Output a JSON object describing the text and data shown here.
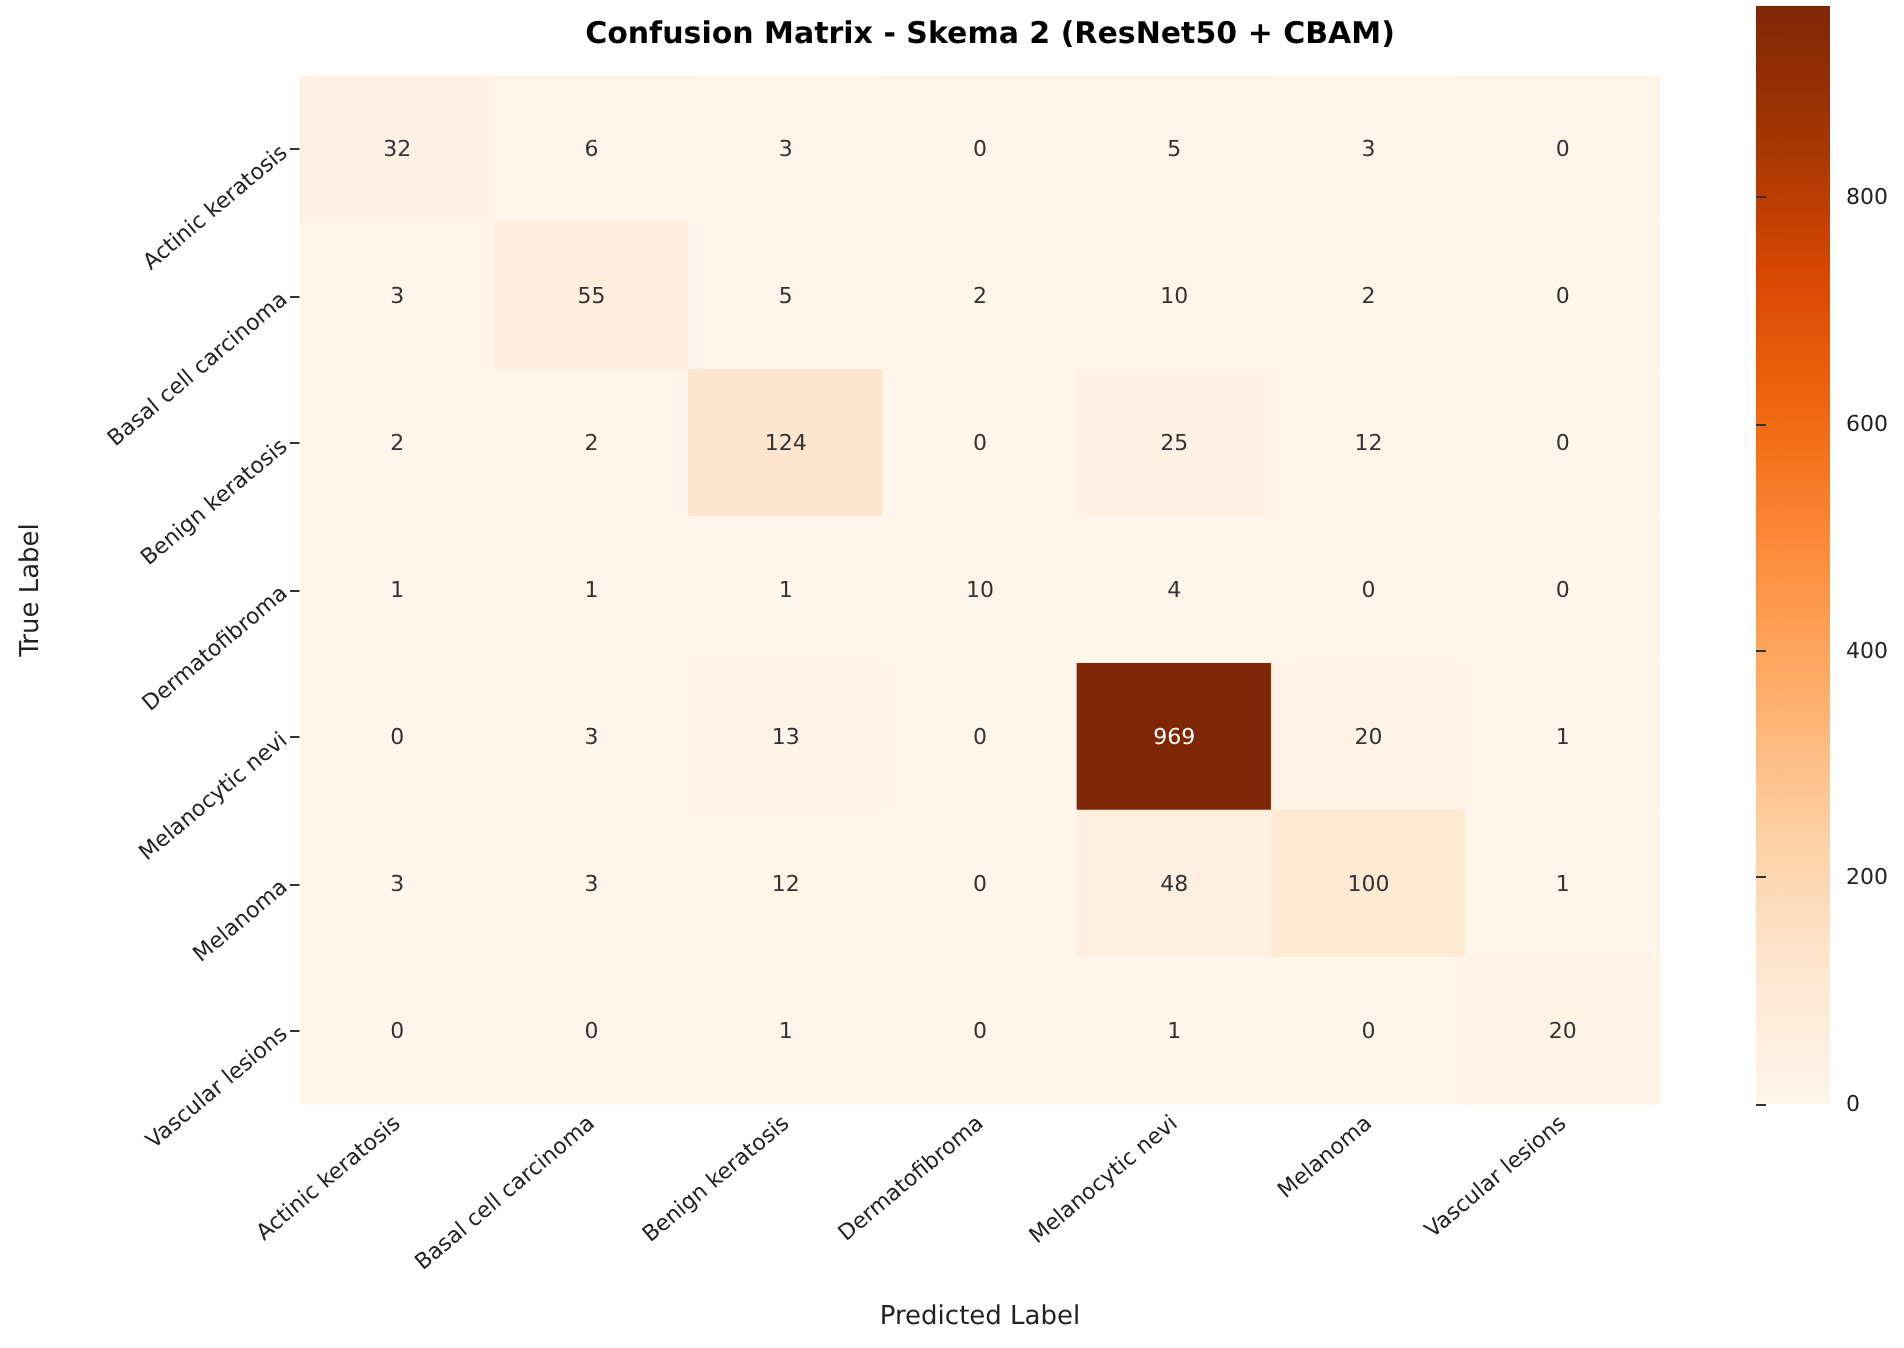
{
  "chart_data": {
    "type": "heatmap",
    "title": "Confusion Matrix - Skema 2 (ResNet50 + CBAM)",
    "xlabel": "Predicted Label",
    "ylabel": "True Label",
    "categories": [
      "Actinic keratosis",
      "Basal cell carcinoma",
      "Benign keratosis",
      "Dermatofibroma",
      "Melanocytic nevi",
      "Melanoma",
      "Vascular lesions"
    ],
    "y_categories": [
      "Actinic keratosis",
      "Basal cell carcinoma",
      "Benign keratosis",
      "Dermatofibroma",
      "Melanocytic nevi",
      "Melanoma",
      "Vascular lesions"
    ],
    "cells": [
      [
        32,
        6,
        3,
        0,
        5,
        3,
        0
      ],
      [
        3,
        55,
        5,
        2,
        10,
        2,
        0
      ],
      [
        2,
        2,
        124,
        0,
        25,
        12,
        0
      ],
      [
        1,
        1,
        1,
        10,
        4,
        0,
        0
      ],
      [
        0,
        3,
        13,
        0,
        969,
        20,
        1
      ],
      [
        3,
        3,
        12,
        0,
        48,
        100,
        1
      ],
      [
        0,
        0,
        1,
        0,
        1,
        0,
        20
      ]
    ],
    "data_labels": true,
    "clim": [
      0,
      969
    ],
    "cticks": [
      0,
      200,
      400,
      600,
      800
    ]
  }
}
